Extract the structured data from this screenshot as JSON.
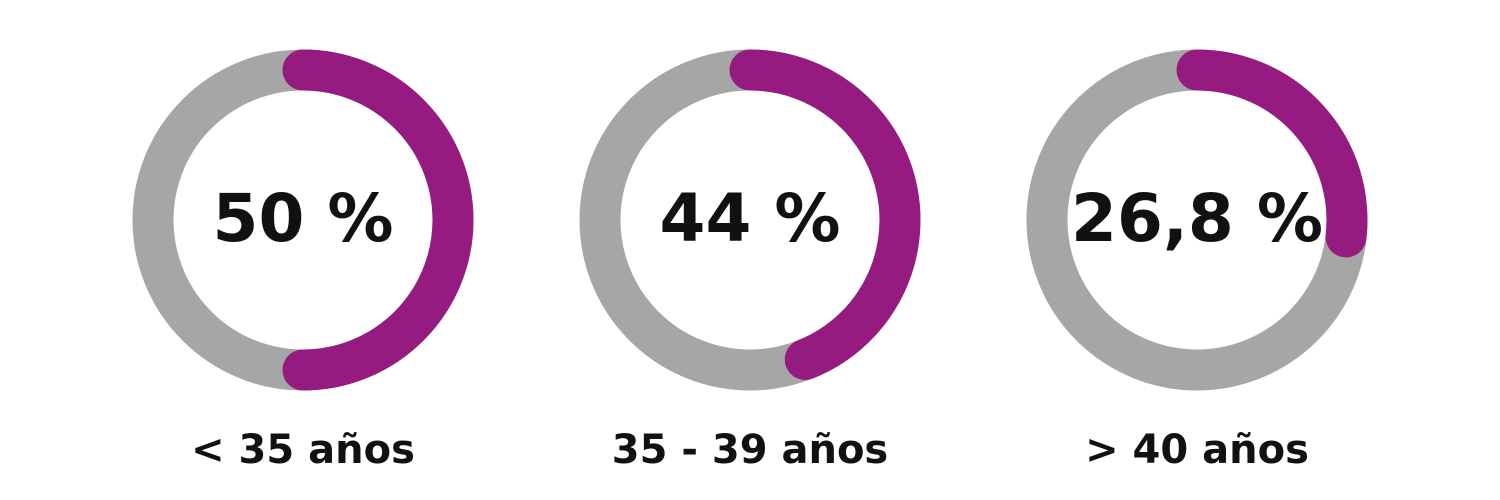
{
  "chart_data": [
    {
      "type": "donut",
      "title": "< 35 años",
      "values": [
        50
      ],
      "value_labels": [
        "50 %"
      ],
      "color": "#951b81",
      "track_color": "#a6a6a6"
    },
    {
      "type": "donut",
      "title": "35 - 39 años",
      "values": [
        44
      ],
      "value_labels": [
        "44 %"
      ],
      "color": "#951b81",
      "track_color": "#a6a6a6"
    },
    {
      "type": "donut",
      "title": "> 40 años",
      "values": [
        26.8
      ],
      "value_labels": [
        "26,8 %"
      ],
      "color": "#951b81",
      "track_color": "#a6a6a6"
    }
  ]
}
